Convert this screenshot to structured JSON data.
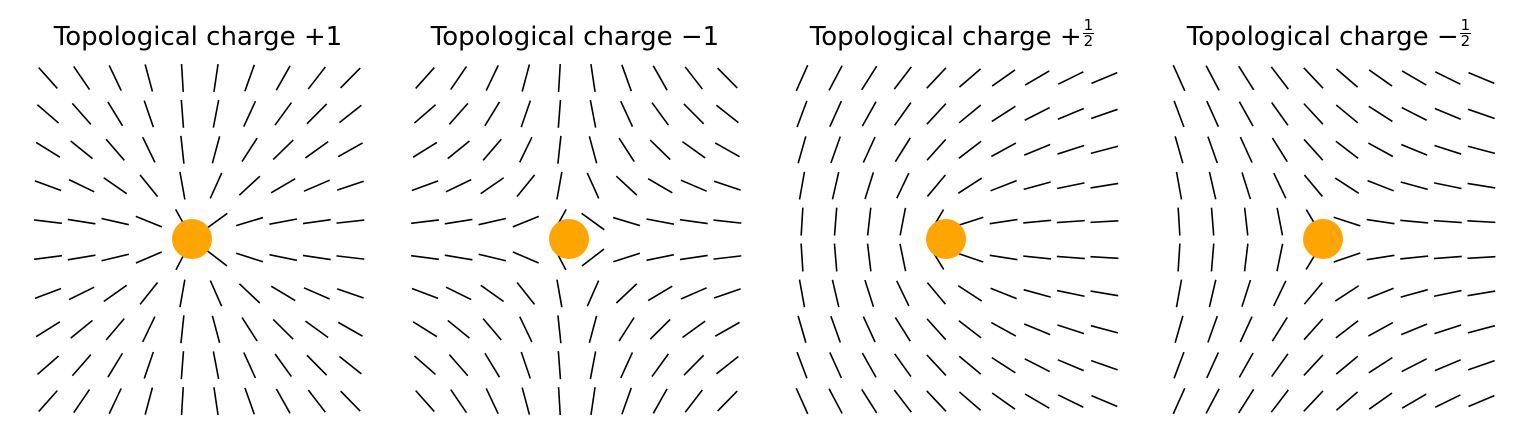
{
  "colors": {
    "core": "#FFA500",
    "stroke": "#000000",
    "background": "#FFFFFF"
  },
  "panels": [
    {
      "title_text": "Topological charge +1",
      "title_prefix": "",
      "numerator": "",
      "denominator": "",
      "charge": 1
    },
    {
      "title_text": "Topological charge −1",
      "title_prefix": "",
      "numerator": "",
      "denominator": "",
      "charge": -1
    },
    {
      "title_text": "",
      "title_prefix": "Topological charge +",
      "numerator": "1",
      "denominator": "2",
      "charge": 0.5
    },
    {
      "title_text": "",
      "title_prefix": "Topological charge −",
      "numerator": "1",
      "denominator": "2",
      "charge": -0.5
    }
  ],
  "grid": {
    "columns": 10,
    "rows": 10
  },
  "marker": "orange-dot"
}
